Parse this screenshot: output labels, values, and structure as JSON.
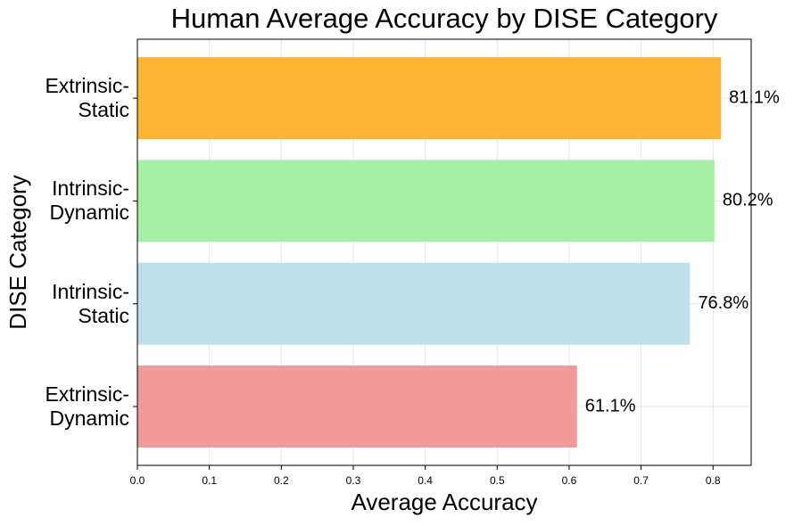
{
  "chart_data": {
    "type": "barh",
    "title": "Human Average Accuracy by DISE Category",
    "x_label": "Average Accuracy",
    "y_label": "DISE Category",
    "categories": [
      "Extrinsic-\nDynamic",
      "Intrinsic-\nStatic",
      "Intrinsic-\nDynamic",
      "Extrinsic-\nStatic"
    ],
    "values": [
      0.611,
      0.768,
      0.802,
      0.811
    ],
    "value_labels": [
      "61.1%",
      "76.8%",
      "80.2%",
      "81.1%"
    ],
    "colors": [
      "#f09a9a",
      "#bde0ea",
      "#a6f0a5",
      "#ffb533"
    ],
    "xlim": [
      0,
      0.853
    ],
    "xticks": [
      {
        "value": 0,
        "label": "0.0"
      },
      0.1,
      0.2,
      0.3,
      0.4,
      0.5,
      0.6,
      0.7,
      0.8
    ],
    "grid": true
  }
}
